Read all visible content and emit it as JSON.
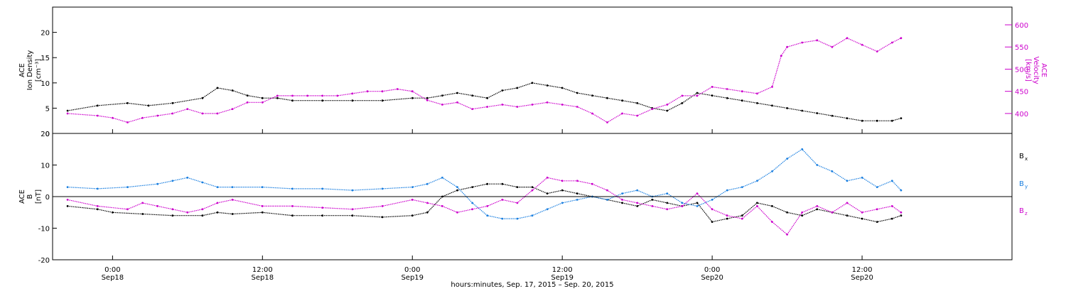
{
  "colors": {
    "black": "#000000",
    "magenta": "#cc00cc",
    "blue": "#1a7fe0"
  },
  "chart_data": [
    {
      "type": "scatter",
      "panel": "top",
      "ylabel_left": [
        "ACE",
        "Ion Density",
        "[cm⁻³]"
      ],
      "ylabel_right": [
        "ACE",
        "Velocity",
        "[km/s]"
      ],
      "xlim": [
        -0.2,
        3.0
      ],
      "ylim_left": [
        0,
        25
      ],
      "yticks_left": [
        0,
        5,
        10,
        15,
        20
      ],
      "ylim_right": [
        355,
        640
      ],
      "yticks_right": [
        400,
        450,
        500,
        550,
        600
      ],
      "series": [
        {
          "axis": "left",
          "color": "black",
          "points": [
            [
              -0.15,
              4.5
            ],
            [
              -0.05,
              5.5
            ],
            [
              0.05,
              6
            ],
            [
              0.12,
              5.5
            ],
            [
              0.2,
              6
            ],
            [
              0.3,
              7
            ],
            [
              0.35,
              9
            ],
            [
              0.4,
              8.5
            ],
            [
              0.45,
              7.5
            ],
            [
              0.5,
              7
            ],
            [
              0.55,
              7
            ],
            [
              0.6,
              6.5
            ],
            [
              0.7,
              6.5
            ],
            [
              0.8,
              6.5
            ],
            [
              0.9,
              6.5
            ],
            [
              1.0,
              7
            ],
            [
              1.05,
              7
            ],
            [
              1.1,
              7.5
            ],
            [
              1.15,
              8
            ],
            [
              1.2,
              7.5
            ],
            [
              1.25,
              7
            ],
            [
              1.3,
              8.5
            ],
            [
              1.35,
              9
            ],
            [
              1.4,
              10
            ],
            [
              1.45,
              9.5
            ],
            [
              1.5,
              9
            ],
            [
              1.55,
              8
            ],
            [
              1.6,
              7.5
            ],
            [
              1.65,
              7
            ],
            [
              1.7,
              6.5
            ],
            [
              1.75,
              6
            ],
            [
              1.8,
              5
            ],
            [
              1.85,
              4.5
            ],
            [
              1.9,
              6
            ],
            [
              1.95,
              8
            ],
            [
              2.0,
              7.5
            ],
            [
              2.05,
              7
            ],
            [
              2.1,
              6.5
            ],
            [
              2.15,
              6
            ],
            [
              2.2,
              5.5
            ],
            [
              2.25,
              5
            ],
            [
              2.3,
              4.5
            ],
            [
              2.35,
              4
            ],
            [
              2.4,
              3.5
            ],
            [
              2.45,
              3
            ],
            [
              2.5,
              2.5
            ],
            [
              2.55,
              2.5
            ],
            [
              2.6,
              2.5
            ],
            [
              2.63,
              3
            ]
          ]
        },
        {
          "axis": "right",
          "color": "magenta",
          "points": [
            [
              -0.15,
              400
            ],
            [
              -0.05,
              395
            ],
            [
              0.0,
              390
            ],
            [
              0.05,
              380
            ],
            [
              0.1,
              390
            ],
            [
              0.15,
              395
            ],
            [
              0.2,
              400
            ],
            [
              0.25,
              410
            ],
            [
              0.3,
              400
            ],
            [
              0.35,
              400
            ],
            [
              0.4,
              410
            ],
            [
              0.45,
              425
            ],
            [
              0.5,
              425
            ],
            [
              0.55,
              440
            ],
            [
              0.6,
              440
            ],
            [
              0.65,
              440
            ],
            [
              0.7,
              440
            ],
            [
              0.75,
              440
            ],
            [
              0.8,
              445
            ],
            [
              0.85,
              450
            ],
            [
              0.9,
              450
            ],
            [
              0.95,
              455
            ],
            [
              1.0,
              450
            ],
            [
              1.05,
              430
            ],
            [
              1.1,
              420
            ],
            [
              1.15,
              425
            ],
            [
              1.2,
              410
            ],
            [
              1.25,
              415
            ],
            [
              1.3,
              420
            ],
            [
              1.35,
              415
            ],
            [
              1.4,
              420
            ],
            [
              1.45,
              425
            ],
            [
              1.5,
              420
            ],
            [
              1.55,
              415
            ],
            [
              1.6,
              400
            ],
            [
              1.65,
              380
            ],
            [
              1.7,
              400
            ],
            [
              1.75,
              395
            ],
            [
              1.8,
              410
            ],
            [
              1.85,
              420
            ],
            [
              1.9,
              440
            ],
            [
              1.95,
              440
            ],
            [
              2.0,
              460
            ],
            [
              2.05,
              455
            ],
            [
              2.1,
              450
            ],
            [
              2.15,
              445
            ],
            [
              2.2,
              460
            ],
            [
              2.23,
              530
            ],
            [
              2.25,
              550
            ],
            [
              2.3,
              560
            ],
            [
              2.35,
              565
            ],
            [
              2.4,
              550
            ],
            [
              2.45,
              570
            ],
            [
              2.5,
              555
            ],
            [
              2.55,
              540
            ],
            [
              2.6,
              560
            ],
            [
              2.63,
              570
            ]
          ]
        }
      ]
    },
    {
      "type": "scatter",
      "panel": "bottom",
      "ylabel_left": [
        "ACE",
        "B",
        "[nT]"
      ],
      "xlim": [
        -0.2,
        3.0
      ],
      "ylim": [
        -20,
        20
      ],
      "yticks": [
        -20,
        -10,
        0,
        10,
        20
      ],
      "legend_position": "right",
      "series": [
        {
          "name": "Bx",
          "color": "black",
          "points": [
            [
              -0.15,
              -3
            ],
            [
              -0.05,
              -4
            ],
            [
              0.0,
              -5
            ],
            [
              0.1,
              -5.5
            ],
            [
              0.2,
              -6
            ],
            [
              0.3,
              -6
            ],
            [
              0.35,
              -5
            ],
            [
              0.4,
              -5.5
            ],
            [
              0.5,
              -5
            ],
            [
              0.6,
              -6
            ],
            [
              0.7,
              -6
            ],
            [
              0.8,
              -6
            ],
            [
              0.9,
              -6.5
            ],
            [
              1.0,
              -6
            ],
            [
              1.05,
              -5
            ],
            [
              1.1,
              0
            ],
            [
              1.15,
              2
            ],
            [
              1.2,
              3
            ],
            [
              1.25,
              4
            ],
            [
              1.3,
              4
            ],
            [
              1.35,
              3
            ],
            [
              1.4,
              3
            ],
            [
              1.45,
              1
            ],
            [
              1.5,
              2
            ],
            [
              1.55,
              1
            ],
            [
              1.6,
              0
            ],
            [
              1.65,
              -1
            ],
            [
              1.7,
              -2
            ],
            [
              1.75,
              -3
            ],
            [
              1.8,
              -1
            ],
            [
              1.85,
              -2
            ],
            [
              1.9,
              -3
            ],
            [
              1.95,
              -2
            ],
            [
              2.0,
              -8
            ],
            [
              2.05,
              -7
            ],
            [
              2.1,
              -6
            ],
            [
              2.15,
              -2
            ],
            [
              2.2,
              -3
            ],
            [
              2.25,
              -5
            ],
            [
              2.3,
              -6
            ],
            [
              2.35,
              -4
            ],
            [
              2.4,
              -5
            ],
            [
              2.45,
              -6
            ],
            [
              2.5,
              -7
            ],
            [
              2.55,
              -8
            ],
            [
              2.6,
              -7
            ],
            [
              2.63,
              -6
            ]
          ]
        },
        {
          "name": "By",
          "color": "blue",
          "points": [
            [
              -0.15,
              3
            ],
            [
              -0.05,
              2.5
            ],
            [
              0.05,
              3
            ],
            [
              0.15,
              4
            ],
            [
              0.2,
              5
            ],
            [
              0.25,
              6
            ],
            [
              0.3,
              4.5
            ],
            [
              0.35,
              3
            ],
            [
              0.4,
              3
            ],
            [
              0.5,
              3
            ],
            [
              0.6,
              2.5
            ],
            [
              0.7,
              2.5
            ],
            [
              0.8,
              2
            ],
            [
              0.9,
              2.5
            ],
            [
              1.0,
              3
            ],
            [
              1.05,
              4
            ],
            [
              1.1,
              6
            ],
            [
              1.15,
              3
            ],
            [
              1.2,
              -2
            ],
            [
              1.25,
              -6
            ],
            [
              1.3,
              -7
            ],
            [
              1.35,
              -7
            ],
            [
              1.4,
              -6
            ],
            [
              1.45,
              -4
            ],
            [
              1.5,
              -2
            ],
            [
              1.55,
              -1
            ],
            [
              1.6,
              0
            ],
            [
              1.65,
              -1
            ],
            [
              1.7,
              1
            ],
            [
              1.75,
              2
            ],
            [
              1.8,
              0
            ],
            [
              1.85,
              1
            ],
            [
              1.9,
              -2
            ],
            [
              1.95,
              -3
            ],
            [
              2.0,
              -1
            ],
            [
              2.05,
              2
            ],
            [
              2.1,
              3
            ],
            [
              2.15,
              5
            ],
            [
              2.2,
              8
            ],
            [
              2.25,
              12
            ],
            [
              2.3,
              15
            ],
            [
              2.35,
              10
            ],
            [
              2.4,
              8
            ],
            [
              2.45,
              5
            ],
            [
              2.5,
              6
            ],
            [
              2.55,
              3
            ],
            [
              2.6,
              5
            ],
            [
              2.63,
              2
            ]
          ]
        },
        {
          "name": "Bz",
          "color": "magenta",
          "points": [
            [
              -0.15,
              -1
            ],
            [
              -0.05,
              -3
            ],
            [
              0.05,
              -4
            ],
            [
              0.1,
              -2
            ],
            [
              0.15,
              -3
            ],
            [
              0.2,
              -4
            ],
            [
              0.25,
              -5
            ],
            [
              0.3,
              -4
            ],
            [
              0.35,
              -2
            ],
            [
              0.4,
              -1
            ],
            [
              0.5,
              -3
            ],
            [
              0.6,
              -3
            ],
            [
              0.7,
              -3.5
            ],
            [
              0.8,
              -4
            ],
            [
              0.9,
              -3
            ],
            [
              1.0,
              -1
            ],
            [
              1.05,
              -2
            ],
            [
              1.1,
              -3
            ],
            [
              1.15,
              -5
            ],
            [
              1.2,
              -4
            ],
            [
              1.25,
              -3
            ],
            [
              1.3,
              -1
            ],
            [
              1.35,
              -2
            ],
            [
              1.4,
              2
            ],
            [
              1.45,
              6
            ],
            [
              1.5,
              5
            ],
            [
              1.55,
              5
            ],
            [
              1.6,
              4
            ],
            [
              1.65,
              2
            ],
            [
              1.7,
              -1
            ],
            [
              1.75,
              -2
            ],
            [
              1.8,
              -3
            ],
            [
              1.85,
              -4
            ],
            [
              1.9,
              -3
            ],
            [
              1.95,
              1
            ],
            [
              2.0,
              -4
            ],
            [
              2.05,
              -6
            ],
            [
              2.1,
              -7
            ],
            [
              2.15,
              -3
            ],
            [
              2.2,
              -8
            ],
            [
              2.25,
              -12
            ],
            [
              2.3,
              -5
            ],
            [
              2.35,
              -3
            ],
            [
              2.4,
              -5
            ],
            [
              2.45,
              -2
            ],
            [
              2.5,
              -5
            ],
            [
              2.55,
              -4
            ],
            [
              2.6,
              -3
            ],
            [
              2.63,
              -5
            ]
          ]
        }
      ],
      "legend": [
        "B",
        "B",
        "B"
      ],
      "legend_sub": [
        "x",
        "y",
        "z"
      ]
    }
  ],
  "x_axis": {
    "ticks": [
      {
        "x": 0.0,
        "time": "0:00",
        "date": "Sep18"
      },
      {
        "x": 0.5,
        "time": "12:00",
        "date": "Sep18"
      },
      {
        "x": 1.0,
        "time": "0:00",
        "date": "Sep19"
      },
      {
        "x": 1.5,
        "time": "12:00",
        "date": "Sep19"
      },
      {
        "x": 2.0,
        "time": "0:00",
        "date": "Sep20"
      },
      {
        "x": 2.5,
        "time": "12:00",
        "date": "Sep20"
      }
    ],
    "title": "hours:minutes, Sep. 17, 2015 – Sep. 20, 2015"
  }
}
